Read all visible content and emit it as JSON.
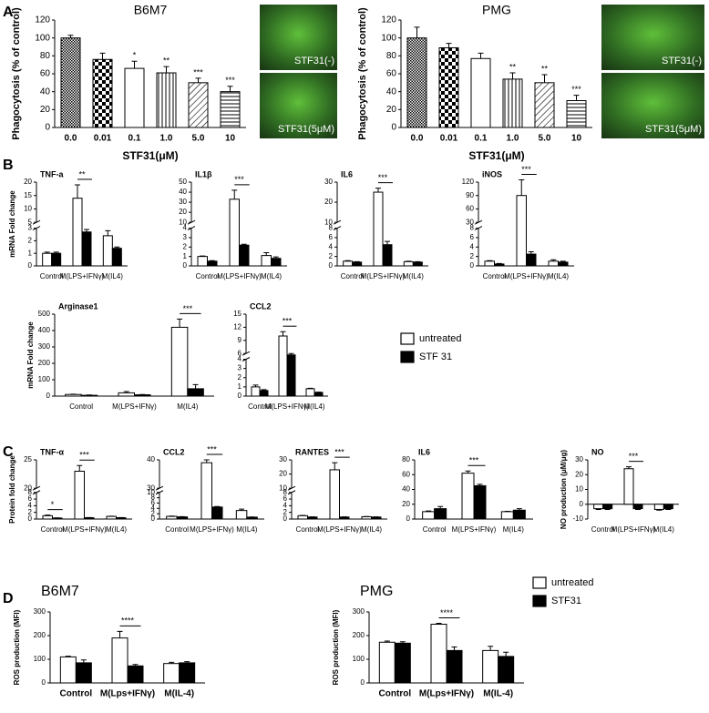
{
  "panel_labels": [
    "A",
    "B",
    "C",
    "D"
  ],
  "images": [
    {
      "label": "STF31(-)"
    },
    {
      "label": "STF31(5μM)"
    },
    {
      "label": "STF31(-)"
    },
    {
      "label": "STF31(5μM)"
    }
  ],
  "legends": [
    {
      "items": [
        {
          "name": "untreated",
          "color": "#ffffff"
        },
        {
          "name": "STF 31",
          "color": "#000000"
        }
      ]
    },
    {
      "items": [
        {
          "name": "untreated",
          "color": "#ffffff"
        },
        {
          "name": "STF31",
          "color": "#000000"
        }
      ]
    }
  ],
  "chart_data": [
    {
      "type": "bar",
      "title": "B6M7",
      "categories": [
        "0.0",
        "0.01",
        "0.1",
        "1.0",
        "5.0",
        "10"
      ],
      "values": [
        100,
        76,
        66,
        61,
        50,
        40
      ],
      "errors": [
        3,
        7,
        8,
        7,
        5,
        6
      ],
      "ylim": [
        0,
        120
      ],
      "yticks": [
        0,
        20,
        40,
        60,
        80,
        100,
        120
      ],
      "y_label": "Phagocytosis (% of control)",
      "x_label": "STF31(μM)",
      "annotations": [
        {
          "text": "*",
          "category": 2
        },
        {
          "text": "**",
          "category": 3
        },
        {
          "text": "***",
          "category": 4
        },
        {
          "text": "***",
          "category": 5
        }
      ]
    },
    {
      "type": "bar",
      "title": "PMG",
      "categories": [
        "0.0",
        "0.01",
        "0.1",
        "1.0",
        "5.0",
        "10"
      ],
      "values": [
        100,
        89,
        77,
        54,
        50,
        30
      ],
      "errors": [
        12,
        5,
        6,
        7,
        9,
        6
      ],
      "ylim": [
        0,
        120
      ],
      "yticks": [
        0,
        20,
        40,
        60,
        80,
        100,
        120
      ],
      "y_label": "Phagocytosis (% of control)",
      "x_label": "STF31(μM)",
      "annotations": [
        {
          "text": "**",
          "category": 3
        },
        {
          "text": "**",
          "category": 4
        },
        {
          "text": "***",
          "category": 5
        }
      ]
    },
    {
      "type": "grouped_bar",
      "title": "TNF-a",
      "categories": [
        "Control",
        "M(LPS+IFNγ)",
        "M(IL4)"
      ],
      "series": [
        {
          "color": "#ffffff",
          "values": [
            1.0,
            14,
            2.4
          ],
          "errors": [
            0.1,
            5,
            0.4
          ]
        },
        {
          "color": "#000000",
          "values": [
            1.0,
            2.7,
            1.4
          ],
          "errors": [
            0.1,
            0.2,
            0.1
          ]
        }
      ],
      "ylim": [
        0,
        20
      ],
      "axis_break": [
        3,
        5
      ],
      "yticks": [
        0,
        1,
        2,
        3,
        5,
        10,
        15,
        20
      ],
      "y_label": "mRNA Fold change",
      "annotations": [
        {
          "text": "**",
          "category": 1
        }
      ]
    },
    {
      "type": "grouped_bar",
      "title": "IL1β",
      "categories": [
        "Control",
        "M(LPS+IFNγ)",
        "M(IL4)"
      ],
      "series": [
        {
          "color": "#ffffff",
          "values": [
            1.0,
            33,
            1.1
          ],
          "errors": [
            0.05,
            9,
            0.3
          ]
        },
        {
          "color": "#000000",
          "values": [
            0.5,
            2.2,
            0.8
          ],
          "errors": [
            0.05,
            0.1,
            0.15
          ]
        }
      ],
      "ylim": [
        0,
        50
      ],
      "axis_break": [
        4,
        10
      ],
      "yticks": [
        0,
        1,
        2,
        3,
        4,
        10,
        20,
        30,
        40,
        50
      ],
      "annotations": [
        {
          "text": "***",
          "category": 1
        }
      ]
    },
    {
      "type": "grouped_bar",
      "title": "IL6",
      "categories": [
        "Control",
        "M(LPS+IFNγ)",
        "M(IL4)"
      ],
      "series": [
        {
          "color": "#ffffff",
          "values": [
            1.0,
            25,
            0.9
          ],
          "errors": [
            0.1,
            2,
            0.1
          ]
        },
        {
          "color": "#000000",
          "values": [
            0.8,
            4.5,
            0.8
          ],
          "errors": [
            0.1,
            0.7,
            0.1
          ]
        }
      ],
      "ylim": [
        0,
        30
      ],
      "axis_break": [
        8,
        10
      ],
      "yticks": [
        0,
        2,
        4,
        6,
        8,
        10,
        20,
        30
      ],
      "annotations": [
        {
          "text": "***",
          "category": 1
        }
      ]
    },
    {
      "type": "grouped_bar",
      "title": "iNOS",
      "categories": [
        "Control",
        "M(LPS+IFNγ)",
        "M(IL4)"
      ],
      "series": [
        {
          "color": "#ffffff",
          "values": [
            1.0,
            90,
            1.0
          ],
          "errors": [
            0.1,
            35,
            0.3
          ]
        },
        {
          "color": "#000000",
          "values": [
            0.4,
            2.5,
            0.8
          ],
          "errors": [
            0.1,
            0.5,
            0.2
          ]
        }
      ],
      "ylim": [
        0,
        120
      ],
      "axis_break": [
        8,
        30
      ],
      "yticks": [
        0,
        2,
        4,
        6,
        8,
        30,
        60,
        90,
        120
      ],
      "annotations": [
        {
          "text": "***",
          "category": 1
        }
      ]
    },
    {
      "type": "grouped_bar",
      "title": "Arginase1",
      "categories": [
        "Control",
        "M(LPS+IFNγ)",
        "M(IL4)"
      ],
      "series": [
        {
          "color": "#ffffff",
          "values": [
            10,
            20,
            420
          ],
          "errors": [
            2,
            8,
            50
          ]
        },
        {
          "color": "#000000",
          "values": [
            5,
            8,
            45
          ],
          "errors": [
            2,
            2,
            25
          ]
        }
      ],
      "ylim": [
        0,
        500
      ],
      "yticks": [
        0,
        100,
        200,
        300,
        400,
        500
      ],
      "y_label": "mRNA Fold change",
      "annotations": [
        {
          "text": "***",
          "category": 2
        }
      ]
    },
    {
      "type": "grouped_bar",
      "title": "CCL2",
      "categories": [
        "Control",
        "M(LPS+IFNγ)",
        "M(IL4)"
      ],
      "series": [
        {
          "color": "#ffffff",
          "values": [
            1.0,
            10,
            0.8
          ],
          "errors": [
            0.2,
            1,
            0.05
          ]
        },
        {
          "color": "#000000",
          "values": [
            0.6,
            5.5,
            0.4
          ],
          "errors": [
            0.1,
            0.5,
            0.03
          ]
        }
      ],
      "ylim": [
        0,
        15
      ],
      "axis_break": [
        4,
        6
      ],
      "yticks": [
        0,
        1,
        2,
        3,
        4,
        6,
        9,
        12,
        15
      ],
      "annotations": [
        {
          "text": "***",
          "category": 1
        }
      ]
    },
    {
      "type": "grouped_bar",
      "title": "TNF-α",
      "categories": [
        "Control",
        "M(LPS+IFNγ)",
        "M(IL4)"
      ],
      "series": [
        {
          "color": "#ffffff",
          "values": [
            1.0,
            23,
            0.8
          ],
          "errors": [
            0.2,
            1,
            0.05
          ]
        },
        {
          "color": "#000000",
          "values": [
            0.3,
            0.4,
            0.4
          ],
          "errors": [
            0.05,
            0.05,
            0.05
          ]
        }
      ],
      "ylim": [
        0,
        25
      ],
      "axis_break": [
        8,
        20
      ],
      "yticks": [
        0,
        2,
        4,
        6,
        8,
        20,
        25
      ],
      "y_label": "Protein fold change",
      "annotations": [
        {
          "text": "*",
          "category": 0
        },
        {
          "text": "***",
          "category": 1
        }
      ]
    },
    {
      "type": "grouped_bar",
      "title": "CCL2",
      "categories": [
        "Control",
        "M(LPS+IFNγ)",
        "M(IL4)"
      ],
      "series": [
        {
          "color": "#ffffff",
          "values": [
            1.0,
            39,
            3.2
          ],
          "errors": [
            0.1,
            1,
            0.5
          ]
        },
        {
          "color": "#000000",
          "values": [
            0.8,
            4.5,
            0.7
          ],
          "errors": [
            0.1,
            0.2,
            0.05
          ]
        }
      ],
      "ylim": [
        0,
        40
      ],
      "axis_break": [
        10,
        30
      ],
      "yticks": [
        0,
        2,
        4,
        6,
        8,
        10,
        30,
        40
      ],
      "annotations": [
        {
          "text": "***",
          "category": 1
        }
      ]
    },
    {
      "type": "grouped_bar",
      "title": "RANTES",
      "categories": [
        "Control",
        "M(LPS+IFNγ)",
        "M(IL4)"
      ],
      "series": [
        {
          "color": "#ffffff",
          "values": [
            1.0,
            23,
            0.7
          ],
          "errors": [
            0.1,
            5,
            0.05
          ]
        },
        {
          "color": "#000000",
          "values": [
            0.6,
            0.6,
            0.6
          ],
          "errors": [
            0.05,
            0.05,
            0.05
          ]
        }
      ],
      "ylim": [
        0,
        30
      ],
      "axis_break": [
        8,
        10
      ],
      "yticks": [
        0,
        2,
        4,
        6,
        8,
        10,
        20,
        30
      ],
      "annotations": [
        {
          "text": "***",
          "category": 1
        }
      ]
    },
    {
      "type": "grouped_bar",
      "title": "IL6",
      "categories": [
        "Control",
        "M(LPS+IFNγ)",
        "M(IL4)"
      ],
      "series": [
        {
          "color": "#ffffff",
          "values": [
            10,
            62,
            10
          ],
          "errors": [
            1,
            3,
            0.5
          ]
        },
        {
          "color": "#000000",
          "values": [
            14,
            45,
            12
          ],
          "errors": [
            3,
            2,
            2
          ]
        }
      ],
      "ylim": [
        0,
        80
      ],
      "yticks": [
        0,
        20,
        40,
        60,
        80
      ],
      "annotations": [
        {
          "text": "***",
          "category": 1
        }
      ]
    },
    {
      "type": "grouped_bar",
      "title": "NO",
      "categories": [
        "Control",
        "M(LPS+IFNγ)",
        "M(IL4)"
      ],
      "series": [
        {
          "color": "#ffffff",
          "values": [
            -3,
            24,
            -3.5
          ],
          "errors": [
            0.5,
            1.3,
            0.5
          ]
        },
        {
          "color": "#000000",
          "values": [
            -3,
            -3,
            -3
          ],
          "errors": [
            0.5,
            0.5,
            0.5
          ]
        }
      ],
      "ylim": [
        -10,
        30
      ],
      "yticks": [
        -10,
        0,
        10,
        20,
        30
      ],
      "y_label": "NO production (μM/μg)",
      "annotations": [
        {
          "text": "***",
          "category": 1
        }
      ]
    },
    {
      "type": "grouped_bar",
      "title": "B6M7",
      "categories": [
        "Control",
        "M(Lps+IFNγ)",
        "M(IL-4)"
      ],
      "series": [
        {
          "color": "#ffffff",
          "values": [
            110,
            190,
            82
          ],
          "errors": [
            3,
            28,
            5
          ]
        },
        {
          "color": "#000000",
          "values": [
            85,
            72,
            85
          ],
          "errors": [
            12,
            6,
            5
          ]
        }
      ],
      "ylim": [
        0,
        300
      ],
      "yticks": [
        0,
        100,
        200,
        300
      ],
      "y_label": "ROS production (MFI)",
      "annotations": [
        {
          "text": "****",
          "category": 1
        }
      ]
    },
    {
      "type": "grouped_bar",
      "title": "PMG",
      "categories": [
        "Control",
        "M(Lps+IFNγ)",
        "M(IL-4)"
      ],
      "series": [
        {
          "color": "#ffffff",
          "values": [
            172,
            248,
            137
          ],
          "errors": [
            5,
            4,
            18
          ]
        },
        {
          "color": "#000000",
          "values": [
            168,
            137,
            112
          ],
          "errors": [
            6,
            15,
            18
          ]
        }
      ],
      "ylim": [
        0,
        300
      ],
      "yticks": [
        0,
        100,
        200,
        300
      ],
      "y_label": "ROS production (MFI)",
      "annotations": [
        {
          "text": "****",
          "category": 1
        }
      ]
    }
  ]
}
